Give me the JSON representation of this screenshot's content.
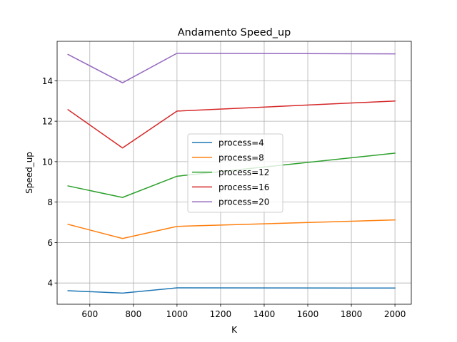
{
  "chart_data": {
    "type": "line",
    "title": "Andamento Speed_up",
    "xlabel": "K",
    "ylabel": "Speed_up",
    "x": [
      500,
      750,
      1000,
      2000
    ],
    "xlim": [
      450,
      2075
    ],
    "ylim": [
      2.95,
      15.95
    ],
    "xticks": [
      600,
      800,
      1000,
      1200,
      1400,
      1600,
      1800,
      2000
    ],
    "yticks": [
      4,
      6,
      8,
      10,
      12,
      14
    ],
    "grid": true,
    "legend_position": "center",
    "series": [
      {
        "name": "process=4",
        "color": "#1f77b4",
        "values": [
          3.62,
          3.5,
          3.76,
          3.75
        ]
      },
      {
        "name": "process=8",
        "color": "#ff7f0e",
        "values": [
          6.9,
          6.2,
          6.8,
          7.12
        ]
      },
      {
        "name": "process=12",
        "color": "#2ca02c",
        "values": [
          8.8,
          8.23,
          9.28,
          10.42
        ]
      },
      {
        "name": "process=16",
        "color": "#d62728",
        "values": [
          12.57,
          10.68,
          12.5,
          13.0
        ]
      },
      {
        "name": "process=20",
        "color": "#9467bd",
        "values": [
          15.3,
          13.9,
          15.36,
          15.33
        ]
      }
    ]
  }
}
